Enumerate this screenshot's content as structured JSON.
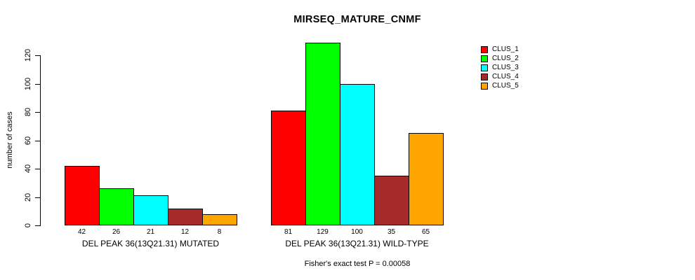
{
  "page": {
    "background": "#FFFFFF",
    "text_color": "#000000"
  },
  "chart_data": {
    "type": "bar",
    "title": "MIRSEQ_MATURE_CNMF",
    "xlabel": "",
    "ylabel": "number of cases",
    "ylim": [
      0,
      130
    ],
    "yticks": [
      0,
      20,
      40,
      60,
      80,
      100,
      120
    ],
    "grid": false,
    "legend_position": "top-right",
    "legend": [
      {
        "label": "CLUS_1",
        "color": "#FF0000"
      },
      {
        "label": "CLUS_2",
        "color": "#00FF00"
      },
      {
        "label": "CLUS_3",
        "color": "#00FFFF"
      },
      {
        "label": "CLUS_4",
        "color": "#A52A2A"
      },
      {
        "label": "CLUS_5",
        "color": "#FFA500"
      }
    ],
    "groups": [
      {
        "label": "DEL PEAK 36(13Q21.31) MUTATED",
        "values": [
          42,
          26,
          21,
          12,
          8
        ]
      },
      {
        "label": "DEL PEAK 36(13Q21.31) WILD-TYPE",
        "values": [
          81,
          129,
          100,
          35,
          65
        ]
      }
    ],
    "footnote": "Fisher's exact test P = 0.00058"
  }
}
